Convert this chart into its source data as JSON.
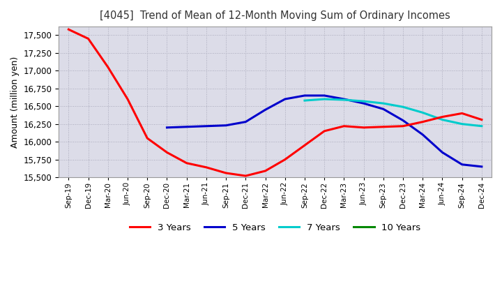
{
  "title": "[4045]  Trend of Mean of 12-Month Moving Sum of Ordinary Incomes",
  "ylabel": "Amount (million yen)",
  "ylim": [
    15500,
    17620
  ],
  "yticks": [
    15500,
    15750,
    16000,
    16250,
    16500,
    16750,
    17000,
    17250,
    17500
  ],
  "bg_color": "#dcdce8",
  "line_colors": {
    "3y": "#ff0000",
    "5y": "#0000cc",
    "7y": "#00cccc",
    "10y": "#008800"
  },
  "legend": [
    "3 Years",
    "5 Years",
    "7 Years",
    "10 Years"
  ],
  "x_labels": [
    "Sep-19",
    "Dec-19",
    "Mar-20",
    "Jun-20",
    "Sep-20",
    "Dec-20",
    "Mar-21",
    "Jun-21",
    "Sep-21",
    "Dec-21",
    "Mar-22",
    "Jun-22",
    "Sep-22",
    "Dec-22",
    "Mar-23",
    "Jun-23",
    "Sep-23",
    "Dec-23",
    "Mar-24",
    "Jun-24",
    "Sep-24",
    "Dec-24"
  ],
  "data_3y": [
    17580,
    17450,
    17050,
    16600,
    16050,
    15850,
    15700,
    15640,
    15560,
    15520,
    15590,
    15750,
    15950,
    16150,
    16220,
    16200,
    16210,
    16220,
    16280,
    16350,
    16400,
    16310
  ],
  "data_5y": [
    null,
    null,
    null,
    null,
    null,
    16200,
    16210,
    16220,
    16230,
    16280,
    16450,
    16600,
    16650,
    16650,
    16600,
    16540,
    16460,
    16300,
    16100,
    15850,
    15680,
    15650
  ],
  "data_7y": [
    null,
    null,
    null,
    null,
    null,
    null,
    null,
    null,
    null,
    null,
    null,
    null,
    16580,
    16600,
    16590,
    16570,
    16540,
    16490,
    16410,
    16310,
    16250,
    16220
  ],
  "data_10y": [
    null,
    null,
    null,
    null,
    null,
    null,
    null,
    null,
    null,
    null,
    null,
    null,
    null,
    null,
    null,
    null,
    null,
    null,
    null,
    null,
    null,
    null
  ]
}
